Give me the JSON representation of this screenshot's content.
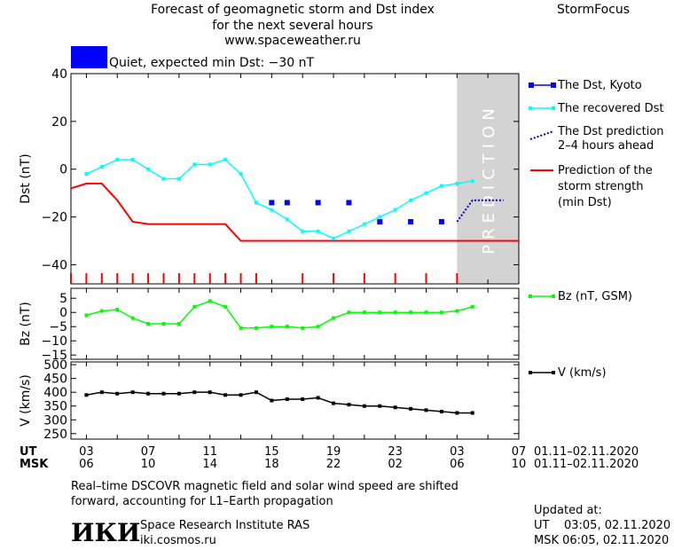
{
  "header": {
    "title_line1": "Forecast of geomagnetic storm and Dst index",
    "title_line2": "for the next several hours",
    "url": "www.spaceweather.ru",
    "brand": "StormFocus",
    "status_text": "Quiet, expected min Dst: −30 nT",
    "status_color": "#0000ff"
  },
  "colors": {
    "dst_kyoto": "#0000ff",
    "recovered": "#00ffff",
    "prediction_line": "#0000cc",
    "min_dst": "#ff0000",
    "bz": "#00ff00",
    "v": "#000000",
    "prediction_band": "#d3d3d3"
  },
  "legends": {
    "dst_kyoto": "The Dst, Kyoto",
    "recovered": "The recovered Dst",
    "prediction_l1": "The Dst prediction",
    "prediction_l2": "2–4 hours ahead",
    "min_l1": "Prediction of the",
    "min_l2": "storm strength",
    "min_l3": "(min Dst)",
    "bz": "Bz (nT, GSM)",
    "v": "V (km/s)"
  },
  "prediction_label": "PREDICTION",
  "time_axis": {
    "ut_label": "UT",
    "msk_label": "MSK",
    "ut_ticks": [
      "03",
      "07",
      "11",
      "15",
      "19",
      "23",
      "03",
      "07"
    ],
    "msk_ticks": [
      "06",
      "10",
      "14",
      "18",
      "22",
      "02",
      "06",
      "10"
    ],
    "date_range_ut": "01.11–02.11.2020",
    "date_range_msk": "01.11–02.11.2020"
  },
  "chart_data": [
    {
      "type": "line",
      "name": "dst",
      "ylabel": "Dst (nT)",
      "ylim": [
        -48,
        40
      ],
      "yticks": [
        40,
        20,
        0,
        -20,
        -40
      ],
      "xlim": [
        3,
        31
      ],
      "prediction_start": 27,
      "series": [
        {
          "name": "The recovered Dst",
          "x": [
            3,
            4,
            5,
            6,
            7,
            8,
            9,
            10,
            11,
            12,
            13,
            14,
            15,
            16,
            17,
            18,
            19,
            20,
            21,
            22,
            23,
            24,
            25,
            26,
            27,
            28
          ],
          "y": [
            -2,
            1,
            4,
            4,
            0,
            -4,
            -4,
            2,
            2,
            4,
            -2,
            -14,
            -17,
            -21,
            -26,
            -26,
            -29,
            -26,
            -23,
            -20,
            -17,
            -13,
            -10,
            -7,
            -6,
            -5
          ]
        },
        {
          "name": "The Dst, Kyoto",
          "x": [
            15,
            16,
            18,
            20,
            22,
            24,
            26
          ],
          "y": [
            -14,
            -14,
            -14,
            -14,
            -22,
            -22,
            -22
          ]
        },
        {
          "name": "The Dst prediction 2–4 hours ahead",
          "x": [
            27,
            28,
            29,
            30
          ],
          "y": [
            -22,
            -13,
            -13,
            -13
          ]
        },
        {
          "name": "Prediction of the storm strength (min Dst)",
          "x": [
            2,
            3,
            4,
            5,
            6,
            7,
            8,
            9,
            10,
            11,
            12,
            13,
            14,
            15,
            16,
            17,
            18,
            19,
            20,
            21,
            22,
            23,
            24,
            25,
            26,
            27,
            28,
            29,
            30,
            31
          ],
          "y": [
            -8,
            -6,
            -6,
            -13,
            -22,
            -23,
            -23,
            -23,
            -23,
            -23,
            -23,
            -30,
            -30,
            -30,
            -30,
            -30,
            -30,
            -30,
            -30,
            -30,
            -30,
            -30,
            -30,
            -30,
            -30,
            -30,
            -30,
            -30,
            -30,
            -30
          ]
        }
      ],
      "storm_ticks_x": [
        2,
        3,
        4,
        5,
        6,
        7,
        8,
        9,
        10,
        11,
        12,
        13,
        14,
        17,
        19,
        21,
        23,
        25,
        27
      ]
    },
    {
      "type": "line",
      "name": "bz",
      "ylabel": "Bz (nT)",
      "ylim": [
        -16.5,
        8.5
      ],
      "yticks": [
        5,
        0,
        -5,
        -10,
        -15
      ],
      "series": [
        {
          "name": "Bz (nT, GSM)",
          "x": [
            3,
            4,
            5,
            6,
            7,
            8,
            9,
            10,
            11,
            12,
            13,
            14,
            15,
            16,
            17,
            18,
            19,
            20,
            21,
            22,
            23,
            24,
            25,
            26,
            27,
            28
          ],
          "y": [
            -1,
            0.5,
            1,
            -2,
            -4,
            -4,
            -4,
            2,
            4,
            2,
            -5.5,
            -5.5,
            -5,
            -5,
            -5.5,
            -5,
            -2,
            0,
            0,
            0,
            0,
            0,
            0,
            0,
            0.5,
            2
          ]
        }
      ]
    },
    {
      "type": "line",
      "name": "v",
      "ylabel": "V (km/s)",
      "ylim": [
        230,
        510
      ],
      "yticks": [
        500,
        450,
        400,
        350,
        300,
        250
      ],
      "series": [
        {
          "name": "V (km/s)",
          "x": [
            3,
            4,
            5,
            6,
            7,
            8,
            9,
            10,
            11,
            12,
            13,
            14,
            15,
            16,
            17,
            18,
            19,
            20,
            21,
            22,
            23,
            24,
            25,
            26,
            27,
            28
          ],
          "y": [
            390,
            400,
            395,
            400,
            395,
            395,
            395,
            400,
            400,
            390,
            390,
            400,
            370,
            375,
            375,
            380,
            360,
            355,
            350,
            350,
            345,
            340,
            335,
            330,
            325,
            325
          ]
        }
      ]
    }
  ],
  "footer": {
    "note_line1": "Real–time DSCOVR magnetic field and solar wind speed are shifted",
    "note_line2": "forward, accounting for L1–Earth propagation",
    "logo_text": "ИКИ",
    "institute": "Space Research Institute RAS",
    "site": "iki.cosmos.ru",
    "updated_label": "Updated at:",
    "updated_ut": "UT    03:05, 02.11.2020",
    "updated_msk": "MSK 06:05, 02.11.2020"
  }
}
